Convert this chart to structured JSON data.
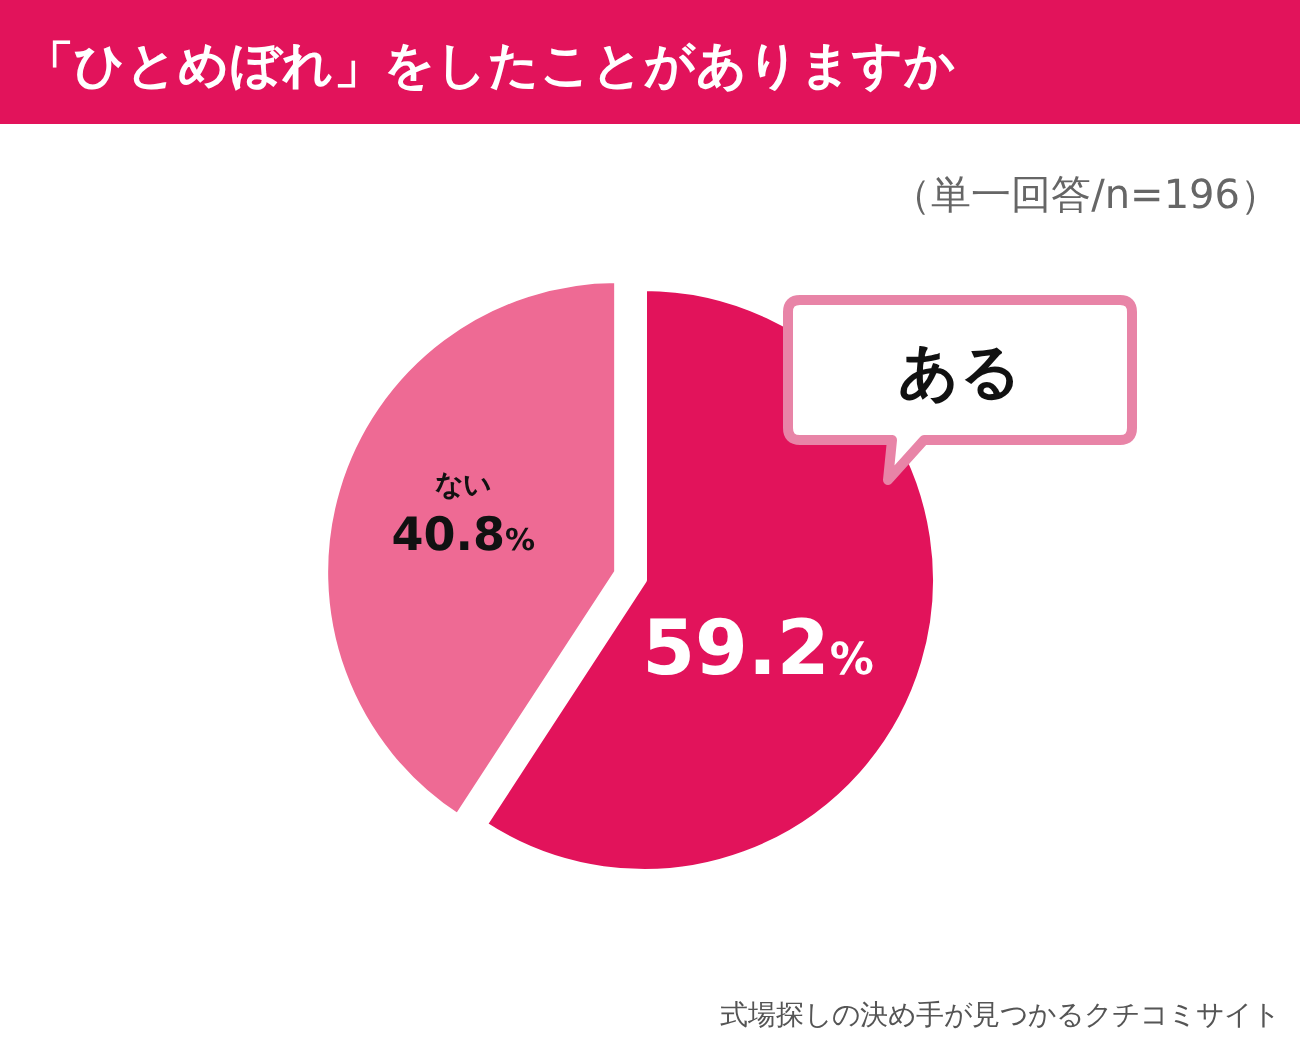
{
  "chart_data": {
    "type": "pie",
    "title": "「ひとめぼれ」をしたことがありますか",
    "subtitle": "（単一回答/n=196）",
    "categories": [
      "ある",
      "ない"
    ],
    "values": [
      59.2,
      40.8
    ],
    "colors": [
      "#e2135b",
      "#ee6a94"
    ],
    "value_labels": [
      "59.2%",
      "40.8%"
    ],
    "annotations": [
      "式場探しの決め手が見つかるクチコミサイト"
    ]
  }
}
